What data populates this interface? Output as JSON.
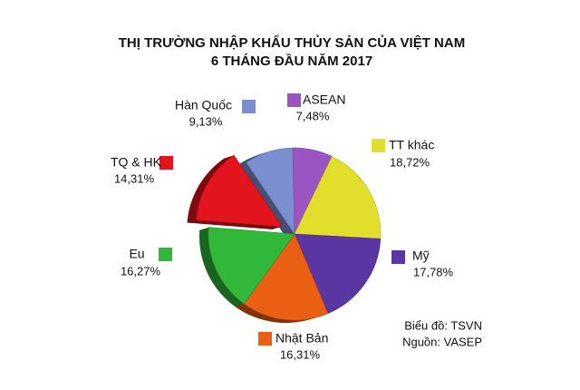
{
  "chart_data": {
    "type": "pie",
    "title": "THỊ TRƯỜNG NHẬP KHẨU THỦY SẢN CỦA VIỆT NAM",
    "subtitle": "6 THÁNG ĐẦU NĂM 2017",
    "categories": [
      "Hàn Quốc",
      "ASEAN",
      "TT khác",
      "Mỹ",
      "Nhật Bản",
      "Eu",
      "TQ & HK"
    ],
    "values": [
      9.13,
      7.48,
      18.72,
      17.78,
      16.31,
      16.27,
      14.31
    ],
    "value_labels": [
      "9,13%",
      "7,48%",
      "18,72%",
      "17,78%",
      "16,31%",
      "16,27%",
      "14,31%"
    ],
    "colors": [
      "#7b8fd0",
      "#9b55c2",
      "#e2df2c",
      "#5a36a3",
      "#ea5f13",
      "#31b83b",
      "#e2141d"
    ],
    "notes": [
      "Biểu đồ: TSVN",
      "Nguồn: VASEP"
    ]
  }
}
